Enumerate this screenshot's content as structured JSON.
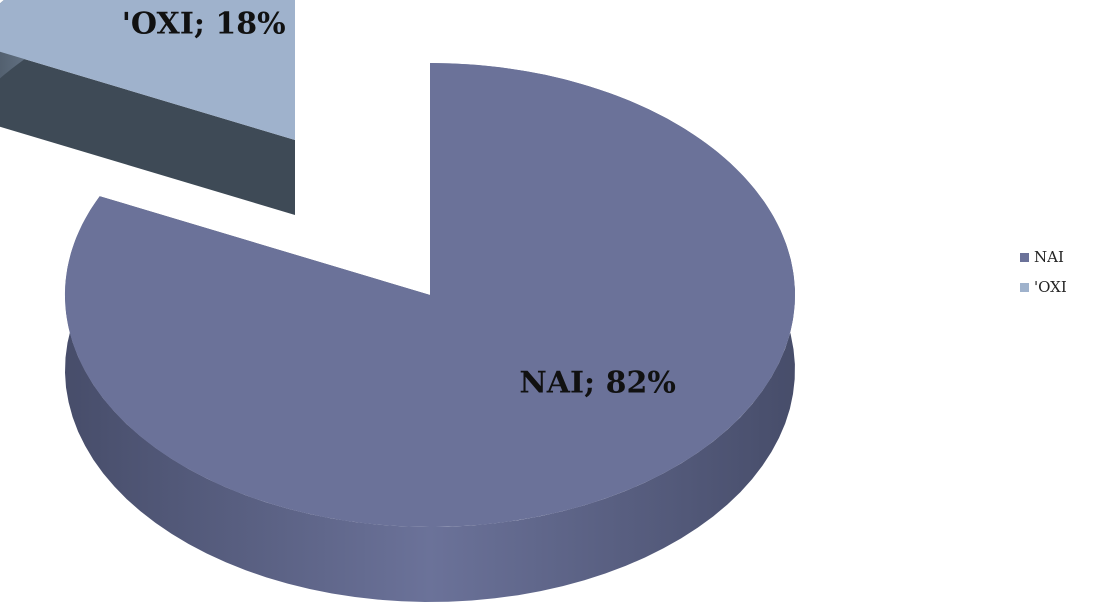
{
  "chart_data": {
    "type": "pie",
    "title": "",
    "slices": [
      {
        "label": "NAI",
        "value": 82,
        "data_label": "NAI; 82%",
        "color": "#6b7299",
        "side_color": "#474d6a"
      },
      {
        "label": "'OXI",
        "value": 18,
        "data_label": "'OXI; 18%",
        "color": "#9fb2cc",
        "side_color": "#3e4a56"
      }
    ],
    "legend": {
      "position": "right",
      "entries": [
        "NAI",
        "'OXI"
      ]
    },
    "style": "3d-exploded"
  }
}
